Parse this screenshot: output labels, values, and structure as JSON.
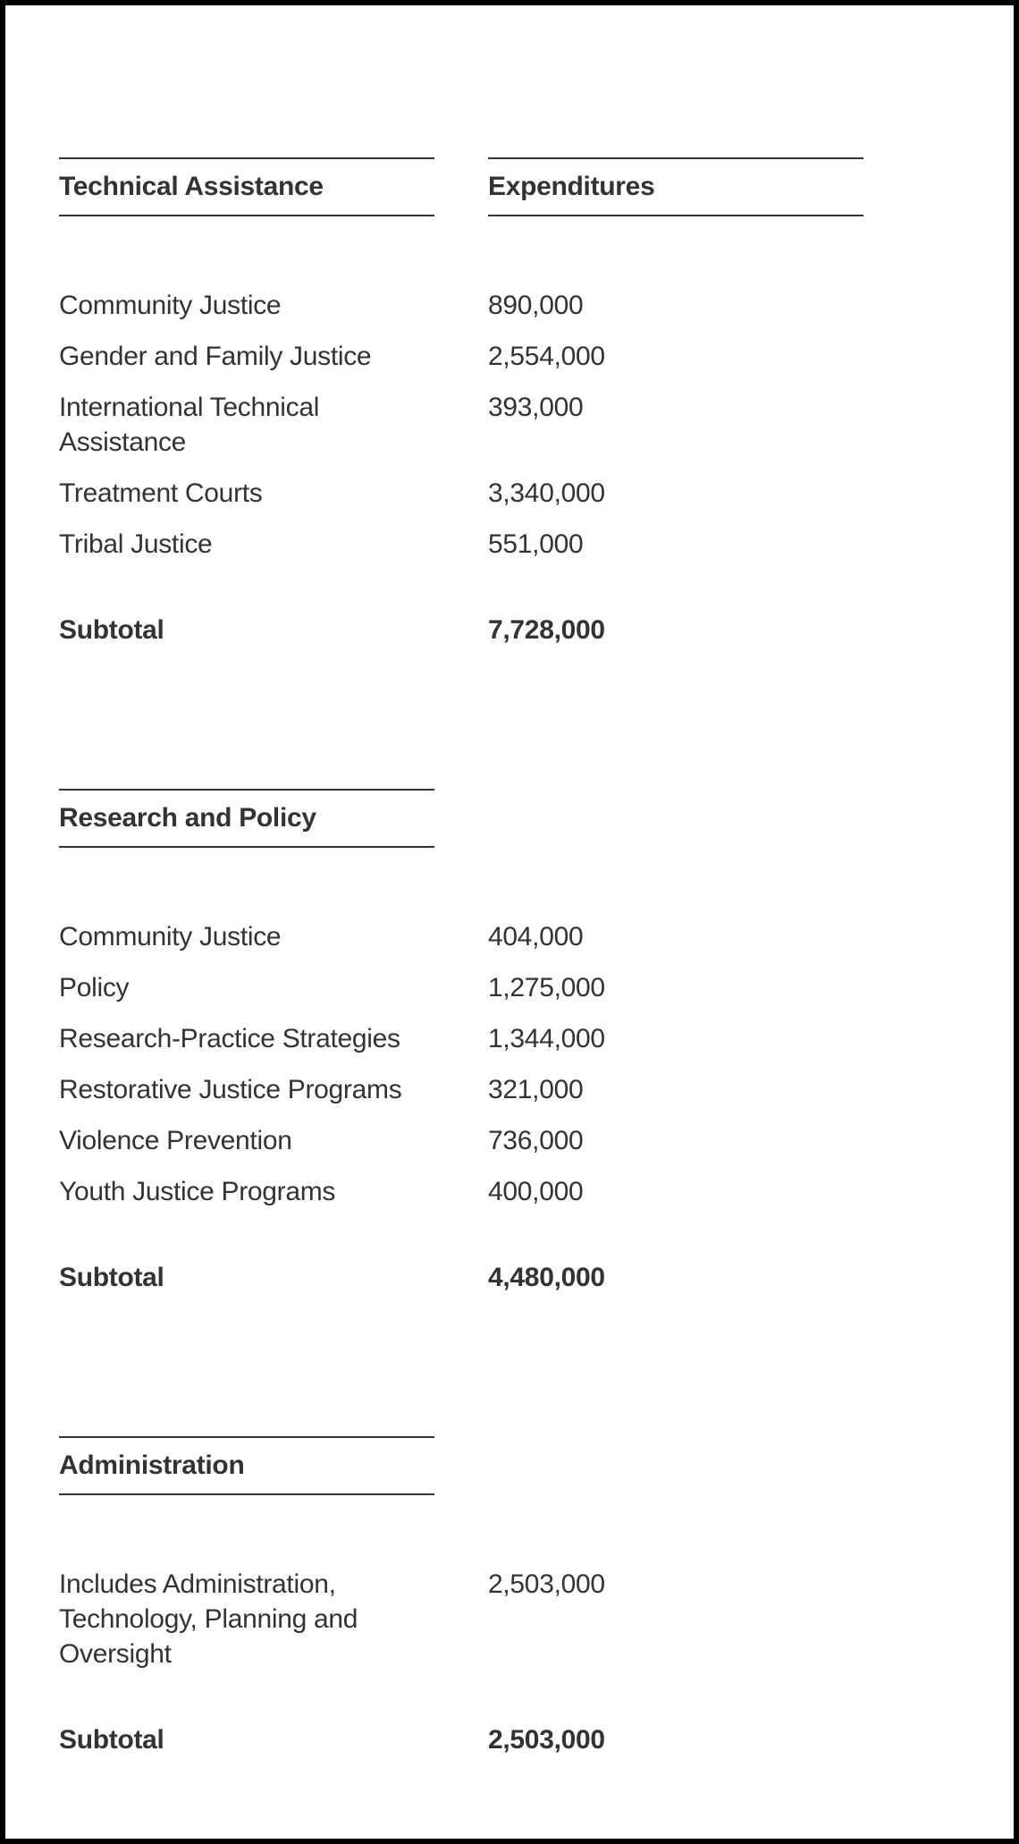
{
  "page": {
    "background_color": "#ffffff",
    "border_color": "#000000",
    "text_color": "#333333",
    "font_size_pt": 22,
    "header_font_weight": 700,
    "body_font_weight": 400,
    "rule_color": "#333333"
  },
  "columns": {
    "value_header": "Expenditures"
  },
  "sections": [
    {
      "title": "Technical Assistance",
      "show_value_header": true,
      "rows": [
        {
          "label": "Community Justice",
          "value": "890,000"
        },
        {
          "label": "Gender and Family Justice",
          "value": "2,554,000"
        },
        {
          "label": "International Technical Assistance",
          "value": "393,000"
        },
        {
          "label": "Treatment Courts",
          "value": "3,340,000"
        },
        {
          "label": "Tribal Justice",
          "value": "551,000"
        }
      ],
      "subtotal_label": "Subtotal",
      "subtotal_value": "7,728,000"
    },
    {
      "title": "Research and Policy",
      "show_value_header": false,
      "rows": [
        {
          "label": "Community Justice",
          "value": "404,000"
        },
        {
          "label": "Policy",
          "value": "1,275,000"
        },
        {
          "label": "Research-Practice Strategies",
          "value": "1,344,000"
        },
        {
          "label": "Restorative Justice Programs",
          "value": "321,000"
        },
        {
          "label": "Violence Prevention",
          "value": "736,000"
        },
        {
          "label": "Youth Justice Programs",
          "value": "400,000"
        }
      ],
      "subtotal_label": "Subtotal",
      "subtotal_value": "4,480,000"
    },
    {
      "title": "Administration",
      "show_value_header": false,
      "rows": [
        {
          "label": "Includes Administration, Technology, Planning and Oversight",
          "value": "2,503,000"
        }
      ],
      "subtotal_label": "Subtotal",
      "subtotal_value": "2,503,000"
    }
  ]
}
